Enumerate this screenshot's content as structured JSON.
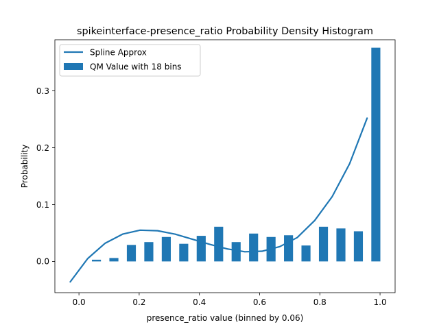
{
  "chart_data": {
    "type": "bar",
    "title": "spikeinterface-presence_ratio Probability Density Histogram",
    "xlabel": "presence_ratio value (binned by 0.06)",
    "ylabel": "Probability",
    "xlim": [
      -0.08,
      1.05
    ],
    "ylim": [
      -0.055,
      0.39
    ],
    "x_ticks": [
      0.0,
      0.2,
      0.4,
      0.6,
      0.8,
      1.0
    ],
    "x_tick_labels": [
      "0.0",
      "0.2",
      "0.4",
      "0.6",
      "0.8",
      "1.0"
    ],
    "y_ticks": [
      0.0,
      0.1,
      0.2,
      0.3
    ],
    "y_tick_labels": [
      "0.0",
      "0.1",
      "0.2",
      "0.3"
    ],
    "grid": false,
    "legend_position": "top-left",
    "bar_color": "#1f77b4",
    "line_color": "#1f77b4",
    "bar_width": 0.03,
    "bars": {
      "name": "QM Value with 18 bins",
      "x": [
        0.058,
        0.116,
        0.174,
        0.232,
        0.29,
        0.348,
        0.406,
        0.464,
        0.522,
        0.58,
        0.638,
        0.696,
        0.754,
        0.812,
        0.87,
        0.928,
        0.986
      ],
      "values": [
        0.003,
        0.006,
        0.029,
        0.034,
        0.043,
        0.031,
        0.045,
        0.061,
        0.034,
        0.049,
        0.043,
        0.046,
        0.028,
        0.061,
        0.058,
        0.053,
        0.376
      ]
    },
    "line": {
      "name": "Spline Approx",
      "x": [
        -0.029,
        0.029,
        0.087,
        0.145,
        0.203,
        0.261,
        0.319,
        0.377,
        0.435,
        0.493,
        0.551,
        0.609,
        0.667,
        0.725,
        0.783,
        0.841,
        0.899,
        0.957
      ],
      "values": [
        -0.036,
        0.005,
        0.032,
        0.048,
        0.055,
        0.054,
        0.048,
        0.039,
        0.03,
        0.022,
        0.017,
        0.018,
        0.026,
        0.042,
        0.072,
        0.114,
        0.172,
        0.252
      ]
    }
  }
}
